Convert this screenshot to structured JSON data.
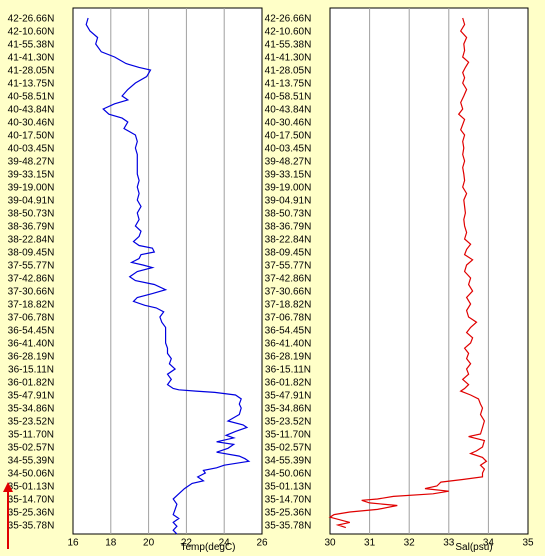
{
  "colors": {
    "background": "#ffffc8",
    "plot_bg": "#ffffff",
    "grid": "#a0a0a0",
    "temp_line": "#0000e0",
    "sal_line": "#e00000",
    "arrow": "#e00000"
  },
  "chart_data": [
    {
      "type": "line",
      "name": "temperature-profile",
      "xlabel": "Temp(degC)",
      "ylabel": "",
      "xlim": [
        16,
        26
      ],
      "xticks": [
        16,
        18,
        20,
        22,
        24,
        26
      ],
      "grid": true,
      "latitude_labels": [
        "42-26.66N",
        "42-10.60N",
        "41-55.38N",
        "41-41.30N",
        "41-28.05N",
        "41-13.75N",
        "40-58.51N",
        "40-43.84N",
        "40-30.46N",
        "40-17.50N",
        "40-03.45N",
        "39-48.27N",
        "39-33.15N",
        "39-19.00N",
        "39-04.91N",
        "38-50.73N",
        "38-36.79N",
        "38-22.84N",
        "38-09.45N",
        "37-55.77N",
        "37-42.86N",
        "37-30.66N",
        "37-18.82N",
        "37-06.78N",
        "36-54.45N",
        "36-41.40N",
        "36-28.19N",
        "36-15.11N",
        "36-01.82N",
        "35-47.91N",
        "35-34.86N",
        "35-23.52N",
        "35-11.70N",
        "35-02.57N",
        "34-55.39N",
        "34-50.06N",
        "35-01.13N",
        "35-14.70N",
        "35-25.36N",
        "35-35.78N"
      ],
      "series": [
        {
          "color": "#0000e0",
          "points": [
            [
              16.8,
              0
            ],
            [
              16.7,
              0.5
            ],
            [
              16.9,
              1
            ],
            [
              17.3,
              1.5
            ],
            [
              17.2,
              2
            ],
            [
              17.5,
              2.6
            ],
            [
              18.2,
              3
            ],
            [
              18.8,
              3.5
            ],
            [
              19.5,
              3.8
            ],
            [
              20.1,
              4
            ],
            [
              19.9,
              4.5
            ],
            [
              19.3,
              5
            ],
            [
              18.9,
              5.5
            ],
            [
              18.6,
              6
            ],
            [
              18.9,
              6.3
            ],
            [
              18.2,
              6.6
            ],
            [
              17.6,
              7
            ],
            [
              17.9,
              7.4
            ],
            [
              18.6,
              7.7
            ],
            [
              18.9,
              8
            ],
            [
              18.7,
              8.5
            ],
            [
              19.3,
              9
            ],
            [
              19.4,
              9.5
            ],
            [
              19.3,
              10
            ],
            [
              19.4,
              10.5
            ],
            [
              19.4,
              11
            ],
            [
              19.4,
              11.5
            ],
            [
              19.4,
              12
            ],
            [
              19.5,
              12.5
            ],
            [
              19.4,
              13
            ],
            [
              19.5,
              13.5
            ],
            [
              19.4,
              14
            ],
            [
              19.6,
              14.5
            ],
            [
              19.4,
              15
            ],
            [
              19.5,
              15.5
            ],
            [
              19.3,
              16
            ],
            [
              19.6,
              16.4
            ],
            [
              19.5,
              16.8
            ],
            [
              19.2,
              17.2
            ],
            [
              19.5,
              17.5
            ],
            [
              20.2,
              17.7
            ],
            [
              20.3,
              18
            ],
            [
              19.6,
              18.2
            ],
            [
              19.5,
              18.5
            ],
            [
              19.1,
              18.8
            ],
            [
              19.7,
              19
            ],
            [
              20.2,
              19.2
            ],
            [
              19.4,
              19.5
            ],
            [
              19.0,
              19.9
            ],
            [
              19.3,
              20.2
            ],
            [
              20.3,
              20.5
            ],
            [
              20.9,
              20.9
            ],
            [
              20.2,
              21.2
            ],
            [
              19.4,
              21.5
            ],
            [
              19.2,
              21.8
            ],
            [
              19.8,
              22.1
            ],
            [
              20.4,
              22.3
            ],
            [
              20.8,
              22.6
            ],
            [
              20.6,
              23
            ],
            [
              20.7,
              23.4
            ],
            [
              20.9,
              23.8
            ],
            [
              20.9,
              24.2
            ],
            [
              20.9,
              24.6
            ],
            [
              20.9,
              25
            ],
            [
              21.0,
              25.4
            ],
            [
              21.0,
              25.8
            ],
            [
              21.2,
              26.2
            ],
            [
              21.1,
              26.6
            ],
            [
              21.4,
              27
            ],
            [
              21.0,
              27.4
            ],
            [
              21.2,
              27.8
            ],
            [
              21.0,
              28.2
            ],
            [
              21.3,
              28.5
            ],
            [
              21.6,
              28.6
            ],
            [
              22.5,
              28.7
            ],
            [
              23.5,
              28.8
            ],
            [
              24.6,
              29
            ],
            [
              24.9,
              29.3
            ],
            [
              24.8,
              29.7
            ],
            [
              24.9,
              30
            ],
            [
              24.8,
              30.5
            ],
            [
              24.2,
              31
            ],
            [
              25.0,
              31.3
            ],
            [
              25.2,
              31.5
            ],
            [
              24.6,
              31.8
            ],
            [
              24.1,
              32.1
            ],
            [
              24.5,
              32.3
            ],
            [
              23.6,
              32.6
            ],
            [
              24.5,
              32.8
            ],
            [
              24.2,
              33.1
            ],
            [
              23.6,
              33.4
            ],
            [
              24.8,
              33.7
            ],
            [
              25.1,
              33.9
            ],
            [
              25.3,
              34.1
            ],
            [
              24.0,
              34.4
            ],
            [
              23.6,
              34.6
            ],
            [
              22.9,
              34.8
            ],
            [
              23.0,
              35
            ],
            [
              22.6,
              35.3
            ],
            [
              22.9,
              35.6
            ],
            [
              22.3,
              35.8
            ],
            [
              21.9,
              36.2
            ],
            [
              21.6,
              36.6
            ],
            [
              21.3,
              37
            ],
            [
              21.5,
              37.4
            ],
            [
              21.4,
              37.8
            ],
            [
              21.3,
              38.2
            ],
            [
              21.6,
              38.5
            ],
            [
              21.3,
              38.8
            ],
            [
              21.5,
              39.1
            ],
            [
              21.3,
              39.4
            ],
            [
              21.5,
              39.7
            ]
          ]
        }
      ]
    },
    {
      "type": "line",
      "name": "salinity-profile",
      "xlabel": "Sal(psu)",
      "ylabel": "",
      "xlim": [
        30,
        35
      ],
      "xticks": [
        30,
        31,
        32,
        33,
        34,
        35
      ],
      "grid": true,
      "latitude_labels": [
        "42-26.66N",
        "42-10.60N",
        "41-55.38N",
        "41-41.30N",
        "41-28.05N",
        "41-13.75N",
        "40-58.51N",
        "40-43.84N",
        "40-30.46N",
        "40-17.50N",
        "40-03.45N",
        "39-48.27N",
        "39-33.15N",
        "39-19.00N",
        "39-04.91N",
        "38-50.73N",
        "38-36.79N",
        "38-22.84N",
        "38-09.45N",
        "37-55.77N",
        "37-42.86N",
        "37-30.66N",
        "37-18.82N",
        "37-06.78N",
        "36-54.45N",
        "36-41.40N",
        "36-28.19N",
        "36-15.11N",
        "36-01.82N",
        "35-47.91N",
        "35-34.86N",
        "35-23.52N",
        "35-11.70N",
        "35-02.57N",
        "34-55.39N",
        "34-50.06N",
        "35-01.13N",
        "35-14.70N",
        "35-25.36N",
        "35-35.78N"
      ],
      "series": [
        {
          "color": "#e00000",
          "points": [
            [
              33.35,
              0
            ],
            [
              33.4,
              0.5
            ],
            [
              33.3,
              1
            ],
            [
              33.45,
              1.5
            ],
            [
              33.38,
              2
            ],
            [
              33.4,
              2.5
            ],
            [
              33.35,
              3
            ],
            [
              33.5,
              3.4
            ],
            [
              33.42,
              3.8
            ],
            [
              33.35,
              4.2
            ],
            [
              33.4,
              4.6
            ],
            [
              33.35,
              5
            ],
            [
              33.45,
              5.5
            ],
            [
              33.38,
              6
            ],
            [
              33.3,
              6.5
            ],
            [
              33.35,
              7
            ],
            [
              33.25,
              7.4
            ],
            [
              33.4,
              7.8
            ],
            [
              33.35,
              8.2
            ],
            [
              33.3,
              8.6
            ],
            [
              33.4,
              9
            ],
            [
              33.35,
              9.5
            ],
            [
              33.38,
              10
            ],
            [
              33.35,
              10.5
            ],
            [
              33.4,
              11
            ],
            [
              33.35,
              11.5
            ],
            [
              33.38,
              12
            ],
            [
              33.4,
              12.5
            ],
            [
              33.35,
              13
            ],
            [
              33.45,
              13.5
            ],
            [
              33.38,
              14
            ],
            [
              33.4,
              14.5
            ],
            [
              33.42,
              15
            ],
            [
              33.38,
              15.5
            ],
            [
              33.4,
              16
            ],
            [
              33.45,
              16.5
            ],
            [
              33.4,
              17
            ],
            [
              33.55,
              17.4
            ],
            [
              33.45,
              17.8
            ],
            [
              33.4,
              18.2
            ],
            [
              33.6,
              18.6
            ],
            [
              33.45,
              19
            ],
            [
              33.4,
              19.5
            ],
            [
              33.55,
              20
            ],
            [
              33.5,
              20.5
            ],
            [
              33.6,
              21
            ],
            [
              33.45,
              21.5
            ],
            [
              33.55,
              22
            ],
            [
              33.45,
              22.5
            ],
            [
              33.5,
              23
            ],
            [
              33.7,
              23.4
            ],
            [
              33.55,
              23.8
            ],
            [
              33.45,
              24.2
            ],
            [
              33.6,
              24.6
            ],
            [
              33.55,
              25
            ],
            [
              33.4,
              25.4
            ],
            [
              33.5,
              25.8
            ],
            [
              33.45,
              26.2
            ],
            [
              33.55,
              26.6
            ],
            [
              33.45,
              27
            ],
            [
              33.5,
              27.4
            ],
            [
              33.35,
              27.8
            ],
            [
              33.5,
              28.2
            ],
            [
              33.4,
              28.5
            ],
            [
              33.3,
              28.7
            ],
            [
              33.55,
              29
            ],
            [
              33.75,
              29.3
            ],
            [
              33.8,
              29.7
            ],
            [
              33.85,
              30
            ],
            [
              33.8,
              30.5
            ],
            [
              33.9,
              31
            ],
            [
              33.85,
              31.5
            ],
            [
              33.8,
              32
            ],
            [
              33.5,
              32.2
            ],
            [
              33.9,
              32.5
            ],
            [
              33.85,
              33
            ],
            [
              33.7,
              33.3
            ],
            [
              33.55,
              33.5
            ],
            [
              33.85,
              33.8
            ],
            [
              33.95,
              34.1
            ],
            [
              33.8,
              34.4
            ],
            [
              33.9,
              34.7
            ],
            [
              33.85,
              35
            ],
            [
              33.85,
              35.3
            ],
            [
              33.35,
              35.5
            ],
            [
              32.8,
              35.7
            ],
            [
              32.7,
              36
            ],
            [
              32.4,
              36.2
            ],
            [
              33.0,
              36.4
            ],
            [
              32.6,
              36.6
            ],
            [
              31.6,
              36.8
            ],
            [
              31.2,
              37
            ],
            [
              30.8,
              37.1
            ],
            [
              31.0,
              37.3
            ],
            [
              31.7,
              37.5
            ],
            [
              31.2,
              37.8
            ],
            [
              30.5,
              38
            ],
            [
              30.1,
              38.2
            ],
            [
              30.0,
              38.4
            ],
            [
              30.5,
              38.8
            ],
            [
              30.2,
              39
            ],
            [
              30.4,
              39.2
            ]
          ]
        }
      ]
    }
  ]
}
